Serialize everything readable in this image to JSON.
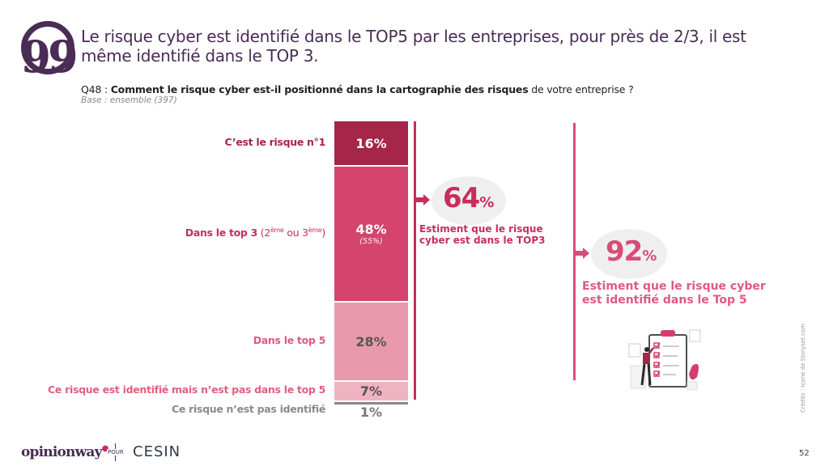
{
  "header": {
    "quote_icon": "quote-icon",
    "headline": "Le risque cyber est identifié dans le TOP5 par les entreprises, pour près de 2/3, il est même identifié dans le TOP 3.",
    "question_prefix": "Q48 : ",
    "question_bold": "Comment le risque cyber est-il positionné dans la cartographie des risques",
    "question_suffix": " de votre entreprise ?",
    "base": "Base : ensemble (397)"
  },
  "chart_data": {
    "type": "bar",
    "subtype": "stacked-100",
    "title": "Comment le risque cyber est-il positionné dans la cartographie des risques de votre entreprise ?",
    "categories": [
      "C’est le risque n°1",
      "Dans le top 3 (2ème ou 3ème)",
      "Dans le top 5",
      "Ce risque est identifié mais n’est pas dans le top 5",
      "Ce risque n’est pas identifié"
    ],
    "values": [
      16,
      48,
      28,
      7,
      1
    ],
    "value_labels": [
      "16%",
      "48%",
      "28%",
      "7%",
      "1%"
    ],
    "secondary_labels": [
      "",
      "(55%)",
      "",
      "",
      ""
    ],
    "unit": "%",
    "colors": [
      "#a6264a",
      "#d4446c",
      "#e89aac",
      "#f0b3c2",
      "#888888"
    ],
    "label_colors": [
      "#a6264a",
      "#c82e5a",
      "#de5a80",
      "#e0607f",
      "#8a8a8a"
    ],
    "value_text_colors": [
      "#ffffff",
      "#ffffff",
      "#555555",
      "#555555",
      "#777777"
    ],
    "labels": {
      "seg0": "C’est le risque n°1",
      "seg1_bold": "Dans le top 3",
      "seg1_open": " (2",
      "seg1_sup1": "ème",
      "seg1_mid": " ou 3",
      "seg1_sup2": "ème",
      "seg1_close": ")",
      "seg2": "Dans le top 5",
      "seg3": "Ce risque est identifié mais n’est pas dans le top 5",
      "seg4": "Ce risque n’est pas identifié"
    },
    "summaries": [
      {
        "value": "64",
        "unit": "%",
        "caption_line1": "Estiment que le risque",
        "caption_line2": "cyber est dans le TOP3",
        "covers": [
          0,
          1
        ]
      },
      {
        "value": "92",
        "unit": "%",
        "caption_line1": "Estiment que le risque cyber",
        "caption_line2": "est identifié dans le Top 5",
        "covers": [
          0,
          1,
          2
        ]
      }
    ]
  },
  "footer": {
    "logo_opinionway": "opinionway",
    "pour": "POUR",
    "logo_cesin": "CESIN",
    "credits": "Crédits : Icone de Storyset.com",
    "page_number": "52"
  }
}
